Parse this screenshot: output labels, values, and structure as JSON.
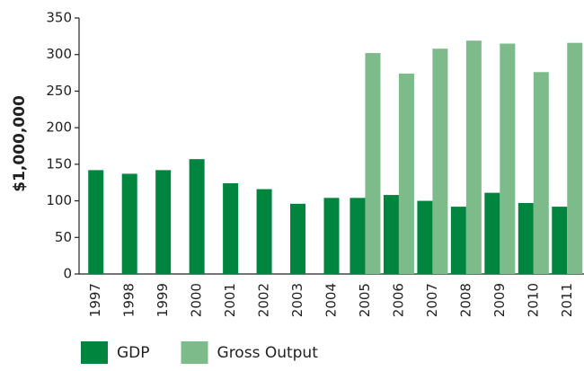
{
  "chart_data": {
    "type": "bar",
    "ylabel": "$1,000,000",
    "categories": [
      "1997",
      "1998",
      "1999",
      "2000",
      "2001",
      "2002",
      "2003",
      "2004",
      "2005",
      "2006",
      "2007",
      "2008",
      "2009",
      "2010",
      "2011"
    ],
    "series": [
      {
        "name": "GDP",
        "color": "#00853f",
        "values": [
          142,
          137,
          142,
          157,
          124,
          116,
          96,
          104,
          104,
          108,
          100,
          92,
          111,
          97,
          92
        ]
      },
      {
        "name": "Gross Output",
        "color": "#7dbb8b",
        "values": [
          null,
          null,
          null,
          null,
          null,
          null,
          null,
          null,
          302,
          274,
          308,
          319,
          315,
          276,
          316
        ]
      }
    ],
    "ylim": [
      0,
      350
    ],
    "yticks": [
      0,
      50,
      100,
      150,
      200,
      250,
      300,
      350
    ],
    "grid": false,
    "legend": "bottom"
  }
}
